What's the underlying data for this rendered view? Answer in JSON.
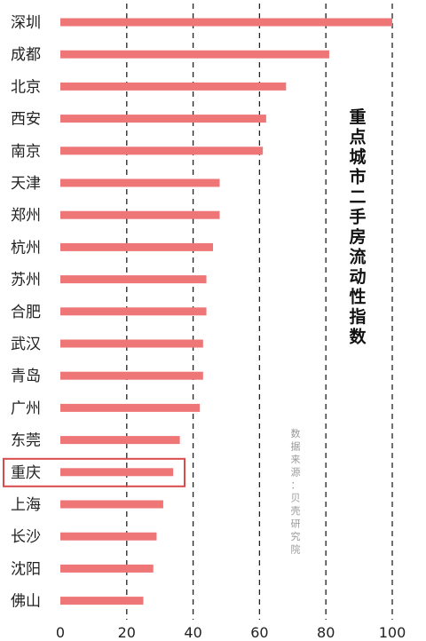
{
  "chart_data": {
    "type": "bar",
    "orientation": "horizontal",
    "title": "重点城市二手房流动性指数",
    "source": "数据来源：贝壳研究院",
    "categories": [
      "深圳",
      "成都",
      "北京",
      "西安",
      "南京",
      "天津",
      "郑州",
      "杭州",
      "苏州",
      "合肥",
      "武汉",
      "青岛",
      "广州",
      "东莞",
      "重庆",
      "上海",
      "长沙",
      "沈阳",
      "佛山"
    ],
    "values": [
      100,
      81,
      68,
      62,
      61,
      48,
      48,
      46,
      44,
      44,
      43,
      43,
      42,
      36,
      34,
      31,
      29,
      28,
      25
    ],
    "xlim": [
      0,
      100
    ],
    "xticks": [
      0,
      20,
      40,
      60,
      80,
      100
    ],
    "gridlines": "dashed vertical at 20, 40, 60, 80, 100",
    "highlighted_category": "重庆",
    "colors": {
      "bar": "#ef7676",
      "highlight_box": "#d94a4a",
      "grid": "#222222"
    }
  }
}
